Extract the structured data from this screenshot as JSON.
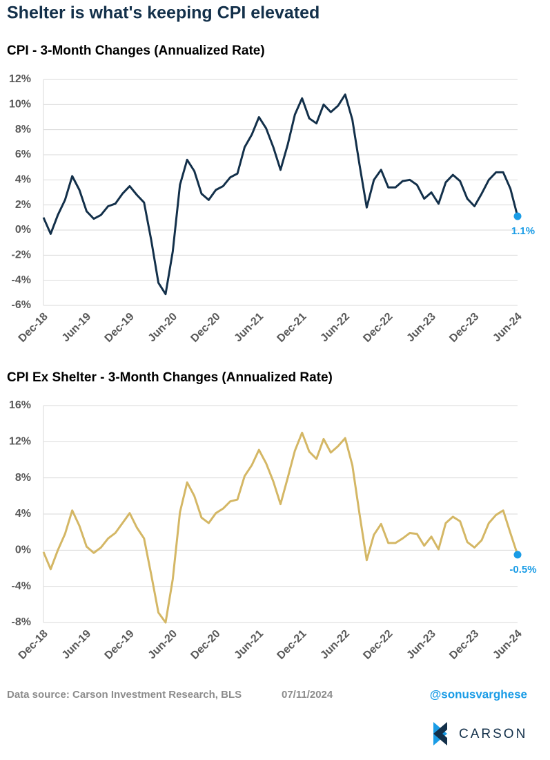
{
  "title": "Shelter is what's keeping CPI elevated",
  "chart_data": [
    {
      "type": "line",
      "title": "CPI - 3-Month Changes (Annualized Rate)",
      "categories": [
        "Dec-18",
        null,
        null,
        null,
        null,
        null,
        "Jun-19",
        null,
        null,
        null,
        null,
        null,
        "Dec-19",
        null,
        null,
        null,
        null,
        null,
        "Jun-20",
        null,
        null,
        null,
        null,
        null,
        "Dec-20",
        null,
        null,
        null,
        null,
        null,
        "Jun-21",
        null,
        null,
        null,
        null,
        null,
        "Dec-21",
        null,
        null,
        null,
        null,
        null,
        "Jun-22",
        null,
        null,
        null,
        null,
        null,
        "Dec-22",
        null,
        null,
        null,
        null,
        null,
        "Jun-23",
        null,
        null,
        null,
        null,
        null,
        "Dec-23",
        null,
        null,
        null,
        null,
        null,
        "Jun-24"
      ],
      "series": [
        {
          "name": "CPI",
          "color": "#13304a",
          "values": [
            1.0,
            -0.3,
            1.2,
            2.4,
            4.3,
            3.2,
            1.5,
            0.9,
            1.2,
            1.9,
            2.1,
            2.9,
            3.5,
            2.8,
            2.2,
            -0.8,
            -4.2,
            -5.1,
            -1.7,
            3.6,
            5.6,
            4.7,
            2.9,
            2.4,
            3.2,
            3.5,
            4.2,
            4.5,
            6.6,
            7.6,
            9.0,
            8.1,
            6.6,
            4.8,
            6.8,
            9.2,
            10.5,
            8.9,
            8.5,
            10.0,
            9.4,
            9.9,
            10.8,
            8.8,
            5.2,
            1.8,
            4.0,
            4.8,
            3.4,
            3.4,
            3.9,
            4.0,
            3.6,
            2.5,
            3.0,
            2.1,
            3.8,
            4.4,
            3.9,
            2.5,
            1.9,
            2.9,
            4.0,
            4.6,
            4.6,
            3.3,
            1.1
          ],
          "value_labels": [
            null,
            null,
            null,
            null,
            null,
            null,
            null,
            null,
            null,
            null,
            null,
            null,
            null,
            null,
            null,
            null,
            null,
            null,
            null,
            null,
            null,
            null,
            null,
            null,
            null,
            null,
            null,
            null,
            null,
            null,
            null,
            null,
            null,
            null,
            null,
            null,
            null,
            null,
            null,
            null,
            null,
            null,
            null,
            null,
            null,
            null,
            null,
            null,
            null,
            null,
            null,
            null,
            null,
            null,
            null,
            null,
            null,
            null,
            null,
            null,
            null,
            null,
            null,
            null,
            null,
            null,
            "1.1%"
          ],
          "label_color": "#1a9ce6"
        }
      ],
      "ylim": [
        -6,
        12
      ],
      "yticks": [
        {
          "value": -6,
          "label": "-6%"
        },
        {
          "value": -4,
          "label": "-4%"
        },
        {
          "value": -2,
          "label": "-2%"
        },
        {
          "value": 0,
          "label": "0%"
        },
        {
          "value": 2,
          "label": "2%"
        },
        {
          "value": 4,
          "label": "4%"
        },
        {
          "value": 6,
          "label": "6%"
        },
        {
          "value": 8,
          "label": "8%"
        },
        {
          "value": 10,
          "label": "10%"
        },
        {
          "value": 12,
          "label": "12%"
        }
      ],
      "grid": true
    },
    {
      "type": "line",
      "title": "CPI Ex Shelter - 3-Month Changes (Annualized Rate)",
      "categories": [
        "Dec-18",
        null,
        null,
        null,
        null,
        null,
        "Jun-19",
        null,
        null,
        null,
        null,
        null,
        "Dec-19",
        null,
        null,
        null,
        null,
        null,
        "Jun-20",
        null,
        null,
        null,
        null,
        null,
        "Dec-20",
        null,
        null,
        null,
        null,
        null,
        "Jun-21",
        null,
        null,
        null,
        null,
        null,
        "Dec-21",
        null,
        null,
        null,
        null,
        null,
        "Jun-22",
        null,
        null,
        null,
        null,
        null,
        "Dec-22",
        null,
        null,
        null,
        null,
        null,
        "Jun-23",
        null,
        null,
        null,
        null,
        null,
        "Dec-23",
        null,
        null,
        null,
        null,
        null,
        "Jun-24"
      ],
      "series": [
        {
          "name": "CPI Ex Shelter",
          "color": "#d4b765",
          "values": [
            -0.2,
            -2.1,
            0.0,
            1.8,
            4.4,
            2.7,
            0.4,
            -0.3,
            0.3,
            1.3,
            1.9,
            3.0,
            4.1,
            2.5,
            1.3,
            -2.7,
            -6.9,
            -8.0,
            -3.2,
            4.2,
            7.5,
            6.0,
            3.6,
            3.0,
            4.1,
            4.6,
            5.4,
            5.6,
            8.2,
            9.4,
            11.1,
            9.6,
            7.6,
            5.1,
            8.0,
            11.0,
            13.0,
            10.9,
            10.1,
            12.3,
            10.8,
            11.5,
            12.4,
            9.4,
            4.0,
            -1.1,
            1.7,
            2.9,
            0.8,
            0.8,
            1.3,
            1.9,
            1.8,
            0.5,
            1.5,
            0.1,
            3.0,
            3.7,
            3.2,
            0.9,
            0.3,
            1.1,
            3.0,
            3.9,
            4.4,
            1.9,
            -0.5
          ],
          "value_labels": [
            null,
            null,
            null,
            null,
            null,
            null,
            null,
            null,
            null,
            null,
            null,
            null,
            null,
            null,
            null,
            null,
            null,
            null,
            null,
            null,
            null,
            null,
            null,
            null,
            null,
            null,
            null,
            null,
            null,
            null,
            null,
            null,
            null,
            null,
            null,
            null,
            null,
            null,
            null,
            null,
            null,
            null,
            null,
            null,
            null,
            null,
            null,
            null,
            null,
            null,
            null,
            null,
            null,
            null,
            null,
            null,
            null,
            null,
            null,
            null,
            null,
            null,
            null,
            null,
            null,
            null,
            "-0.5%"
          ],
          "label_color": "#1a9ce6"
        }
      ],
      "ylim": [
        -8,
        16
      ],
      "yticks": [
        {
          "value": -8,
          "label": "-8%"
        },
        {
          "value": -4,
          "label": "-4%"
        },
        {
          "value": 0,
          "label": "0%"
        },
        {
          "value": 4,
          "label": "4%"
        },
        {
          "value": 8,
          "label": "8%"
        },
        {
          "value": 12,
          "label": "12%"
        },
        {
          "value": 16,
          "label": "16%"
        }
      ],
      "grid": true
    }
  ],
  "footer": {
    "source": "Data source: Carson Investment Research, BLS",
    "date": "07/11/2024",
    "handle": "@sonusvarghese",
    "logo": "CARSON"
  }
}
